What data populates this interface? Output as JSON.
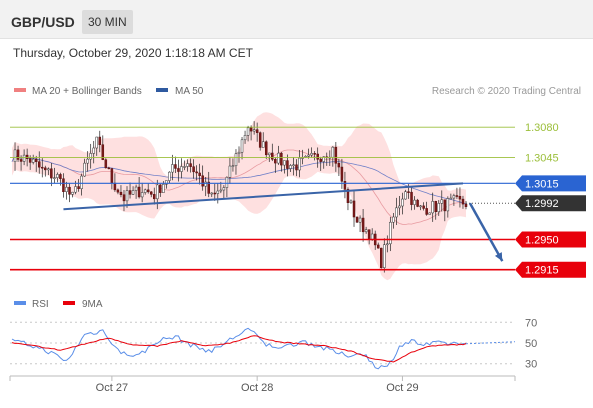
{
  "header": {
    "symbol": "GBP/USD",
    "timeframe": "30 MIN"
  },
  "timestamp": "Thursday, October 29, 2020 1:18:18 AM CET",
  "legend": {
    "bb_label": "MA 20 + Bollinger Bands",
    "ma50_label": "MA 50",
    "credit": "Research © 2020 Trading Central"
  },
  "colors": {
    "resistance": "#9bbf3a",
    "support": "#e8000b",
    "pivot": "#2a64d2",
    "current": "#333333",
    "trend": "#3a64a8",
    "bb_fill": "#fdd6d6",
    "ma20": "#e89aa0",
    "ma50": "#6f7fc8",
    "rsi": "#5a8ee8",
    "rsi_ma": "#e8000b"
  },
  "chart_data": [
    {
      "type": "candlestick",
      "title": "GBP/USD",
      "ylim": [
        1.2895,
        1.3108
      ],
      "x_ticks": [
        {
          "label": "Oct 27",
          "bar": 33
        },
        {
          "label": "Oct 28",
          "bar": 81
        },
        {
          "label": "Oct 29",
          "bar": 129
        }
      ],
      "levels": [
        {
          "label": "1.3080",
          "value": 1.308,
          "kind": "resistance"
        },
        {
          "label": "1.3045",
          "value": 1.3045,
          "kind": "resistance"
        },
        {
          "label": "1.3015",
          "value": 1.3015,
          "kind": "pivot"
        },
        {
          "label": "1.2992",
          "value": 1.2992,
          "kind": "current"
        },
        {
          "label": "1.2950",
          "value": 1.295,
          "kind": "support"
        },
        {
          "label": "1.2915",
          "value": 1.2915,
          "kind": "support"
        }
      ],
      "close_anchors": [
        [
          0,
          1.3048
        ],
        [
          6,
          1.3042
        ],
        [
          10,
          1.303
        ],
        [
          15,
          1.3022
        ],
        [
          20,
          1.2998
        ],
        [
          25,
          1.304
        ],
        [
          28,
          1.3062
        ],
        [
          33,
          1.3018
        ],
        [
          37,
          1.2998
        ],
        [
          43,
          1.3008
        ],
        [
          47,
          1.3002
        ],
        [
          53,
          1.303
        ],
        [
          58,
          1.304
        ],
        [
          62,
          1.3022
        ],
        [
          66,
          1.2998
        ],
        [
          70,
          1.301
        ],
        [
          75,
          1.3055
        ],
        [
          78,
          1.3082
        ],
        [
          83,
          1.3058
        ],
        [
          88,
          1.3042
        ],
        [
          93,
          1.3035
        ],
        [
          97,
          1.304
        ],
        [
          102,
          1.3048
        ],
        [
          106,
          1.3055
        ],
        [
          110,
          1.3005
        ],
        [
          114,
          1.2972
        ],
        [
          118,
          1.2958
        ],
        [
          122,
          1.2925
        ],
        [
          126,
          1.2975
        ],
        [
          130,
          1.301
        ],
        [
          134,
          1.2985
        ],
        [
          140,
          1.2988
        ],
        [
          146,
          1.2993
        ],
        [
          150,
          1.2992
        ]
      ],
      "trendline": {
        "start": {
          "bar": 17,
          "value": 1.2985
        },
        "end": {
          "bar": 149,
          "value": 1.3015
        }
      },
      "projection": {
        "start": {
          "bar": 150,
          "value": 1.2992
        },
        "end": {
          "bar": 162,
          "value": 1.2925
        }
      }
    },
    {
      "type": "line",
      "ylim": [
        22,
        78
      ],
      "y_ticks": [
        "70",
        "50",
        "30"
      ],
      "y_tick_values": [
        70,
        50,
        30
      ],
      "series": [
        {
          "name": "RSI",
          "anchors": [
            [
              0,
              52
            ],
            [
              6,
              48
            ],
            [
              12,
              42
            ],
            [
              18,
              32
            ],
            [
              24,
              58
            ],
            [
              30,
              62
            ],
            [
              36,
              40
            ],
            [
              42,
              38
            ],
            [
              48,
              52
            ],
            [
              54,
              56
            ],
            [
              60,
              47
            ],
            [
              66,
              42
            ],
            [
              72,
              53
            ],
            [
              78,
              64
            ],
            [
              84,
              48
            ],
            [
              90,
              46
            ],
            [
              96,
              52
            ],
            [
              104,
              44
            ],
            [
              110,
              38
            ],
            [
              116,
              40
            ],
            [
              120,
              28
            ],
            [
              124,
              26
            ],
            [
              128,
              47
            ],
            [
              132,
              52
            ],
            [
              136,
              48
            ],
            [
              142,
              50
            ],
            [
              150,
              49
            ]
          ]
        },
        {
          "name": "9MA",
          "anchors": [
            [
              0,
              50
            ],
            [
              8,
              47
            ],
            [
              16,
              43
            ],
            [
              24,
              49
            ],
            [
              32,
              55
            ],
            [
              40,
              48
            ],
            [
              48,
              47
            ],
            [
              56,
              52
            ],
            [
              64,
              47
            ],
            [
              72,
              50
            ],
            [
              80,
              57
            ],
            [
              88,
              51
            ],
            [
              96,
              49
            ],
            [
              104,
              47
            ],
            [
              112,
              42
            ],
            [
              120,
              34
            ],
            [
              126,
              32
            ],
            [
              132,
              41
            ],
            [
              138,
              47
            ],
            [
              150,
              49
            ]
          ]
        }
      ]
    }
  ]
}
